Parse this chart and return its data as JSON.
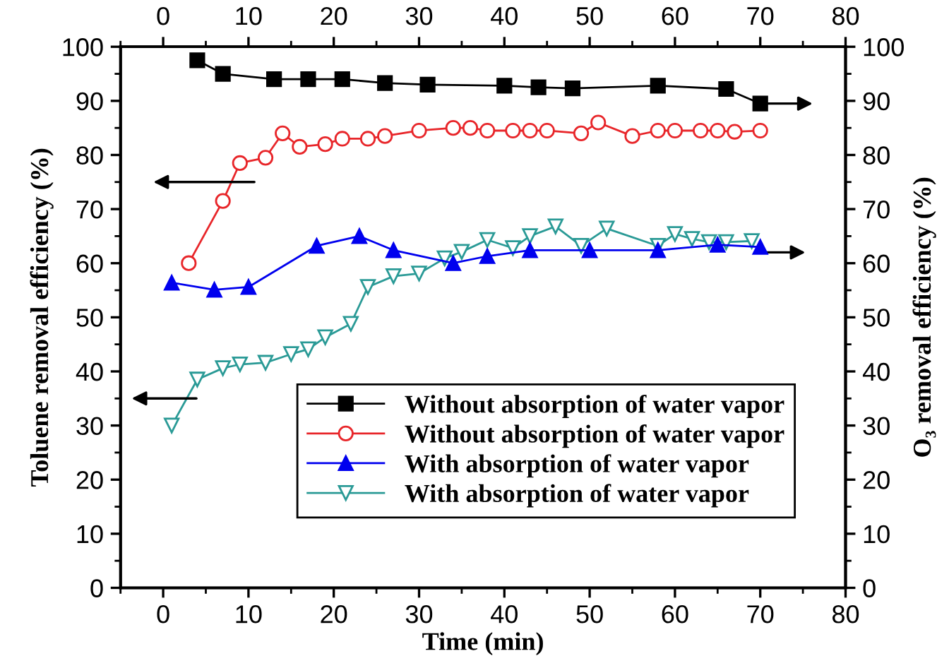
{
  "chart_data": {
    "type": "line",
    "xlabel": "Time (min)",
    "ylabel": "Toluene removal efficiency (%)",
    "y2label": "O₃ removal efficiency (%)",
    "xlim": [
      -5,
      80
    ],
    "xticks": [
      0,
      10,
      20,
      30,
      40,
      50,
      60,
      70,
      80
    ],
    "x2lim": [
      -5,
      80
    ],
    "x2ticks": [
      0,
      10,
      20,
      30,
      40,
      50,
      60,
      70,
      80
    ],
    "ylim": [
      0,
      100
    ],
    "yticks": [
      0,
      10,
      20,
      30,
      40,
      50,
      60,
      70,
      80,
      90,
      100
    ],
    "y2lim": [
      0,
      100
    ],
    "y2ticks": [
      0,
      10,
      20,
      30,
      40,
      50,
      60,
      70,
      80,
      90,
      100
    ],
    "grid": false,
    "legend": "bottom right",
    "line_style": "solid",
    "series": [
      {
        "name": "Without absorption of water vapor",
        "color": "#000000",
        "axis": "y2",
        "marker": "square",
        "x": [
          4,
          7,
          13,
          17,
          21,
          26,
          31,
          40,
          44,
          48,
          58,
          66,
          70
        ],
        "values": [
          97.5,
          95,
          94,
          94,
          94,
          93.3,
          93,
          92.8,
          92.5,
          92.3,
          92.8,
          92.2,
          89.5
        ]
      },
      {
        "name": "Without absorption of water vapor",
        "color": "#e8262a",
        "axis": "y",
        "marker": "circle",
        "x": [
          3,
          7,
          9,
          12,
          14,
          16,
          19,
          21,
          24,
          26,
          30,
          34,
          36,
          38,
          41,
          43,
          45,
          49,
          51,
          55,
          58,
          60,
          63,
          65,
          67,
          70
        ],
        "values": [
          60,
          71.5,
          78.5,
          79.5,
          84,
          81.5,
          82,
          83,
          83,
          83.5,
          84.5,
          85,
          85,
          84.5,
          84.5,
          84.5,
          84.5,
          84,
          86,
          83.5,
          84.5,
          84.5,
          84.5,
          84.5,
          84.3,
          84.5
        ]
      },
      {
        "name": "With absorption of water vapor",
        "color": "#0000ee",
        "axis": "y2",
        "marker": "triangle",
        "x": [
          1,
          6,
          10,
          18,
          23,
          27,
          34,
          38,
          43,
          50,
          58,
          65,
          70
        ],
        "values": [
          56.4,
          55.1,
          55.6,
          63.2,
          65,
          62.4,
          60,
          61.3,
          62.4,
          62.4,
          62.4,
          63.4,
          63
        ]
      },
      {
        "name": "With absorption of water vapor",
        "color": "#2a9a96",
        "axis": "y",
        "marker": "triangle_down",
        "x": [
          1,
          4,
          7,
          9,
          12,
          15,
          17,
          19,
          22,
          24,
          27,
          30,
          33,
          35,
          38,
          41,
          43,
          46,
          49,
          52,
          58,
          60,
          62,
          64,
          66,
          69
        ],
        "values": [
          30,
          38.5,
          40.6,
          41.3,
          41.6,
          43.2,
          44.1,
          46.3,
          48.8,
          55.6,
          57.6,
          58.1,
          60.9,
          62.1,
          64.3,
          62.8,
          65,
          66.8,
          63.2,
          66.4,
          63.2,
          65.4,
          64.5,
          63.9,
          63.9,
          64.1
        ]
      }
    ]
  }
}
